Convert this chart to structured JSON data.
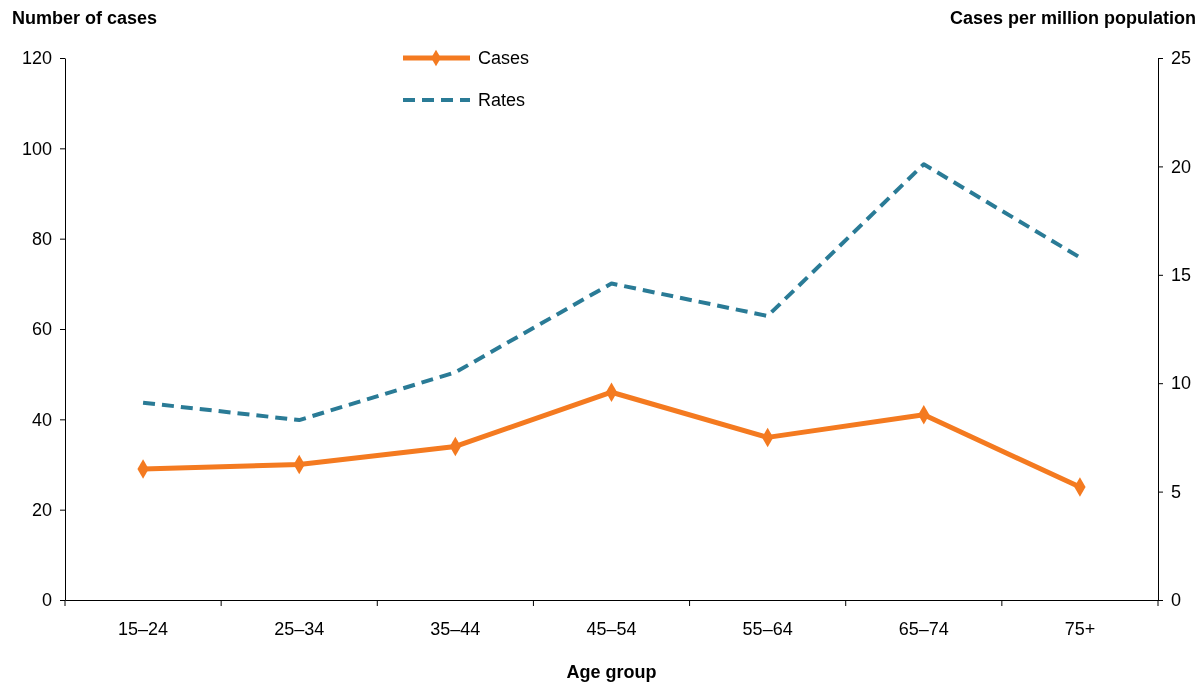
{
  "chart_data": {
    "type": "line",
    "xlabel": "Age group",
    "ylabel": "Number of cases",
    "y2label": "Cases per million population",
    "categories": [
      "15–24",
      "25–34",
      "35–44",
      "45–54",
      "55–64",
      "65–74",
      "75+"
    ],
    "series": [
      {
        "name": "Cases",
        "color": "#f47a20",
        "values": [
          29,
          30,
          34,
          46,
          36,
          41,
          25
        ],
        "marker": "diamond",
        "line_style": "solid"
      },
      {
        "name": "Rates",
        "color": "#2a7b96",
        "values": [
          9.1,
          8.3,
          10.5,
          14.6,
          13.1,
          20.1,
          15.8
        ],
        "axis": "y2",
        "marker": "none",
        "line_style": "dashed"
      }
    ],
    "ylim": [
      0,
      120
    ],
    "yticks": [
      0,
      20,
      40,
      60,
      80,
      100,
      120
    ],
    "y2lim": [
      0,
      25
    ],
    "y2ticks": [
      0,
      5,
      10,
      15,
      20,
      25
    ],
    "grid": false,
    "legend": "top"
  }
}
